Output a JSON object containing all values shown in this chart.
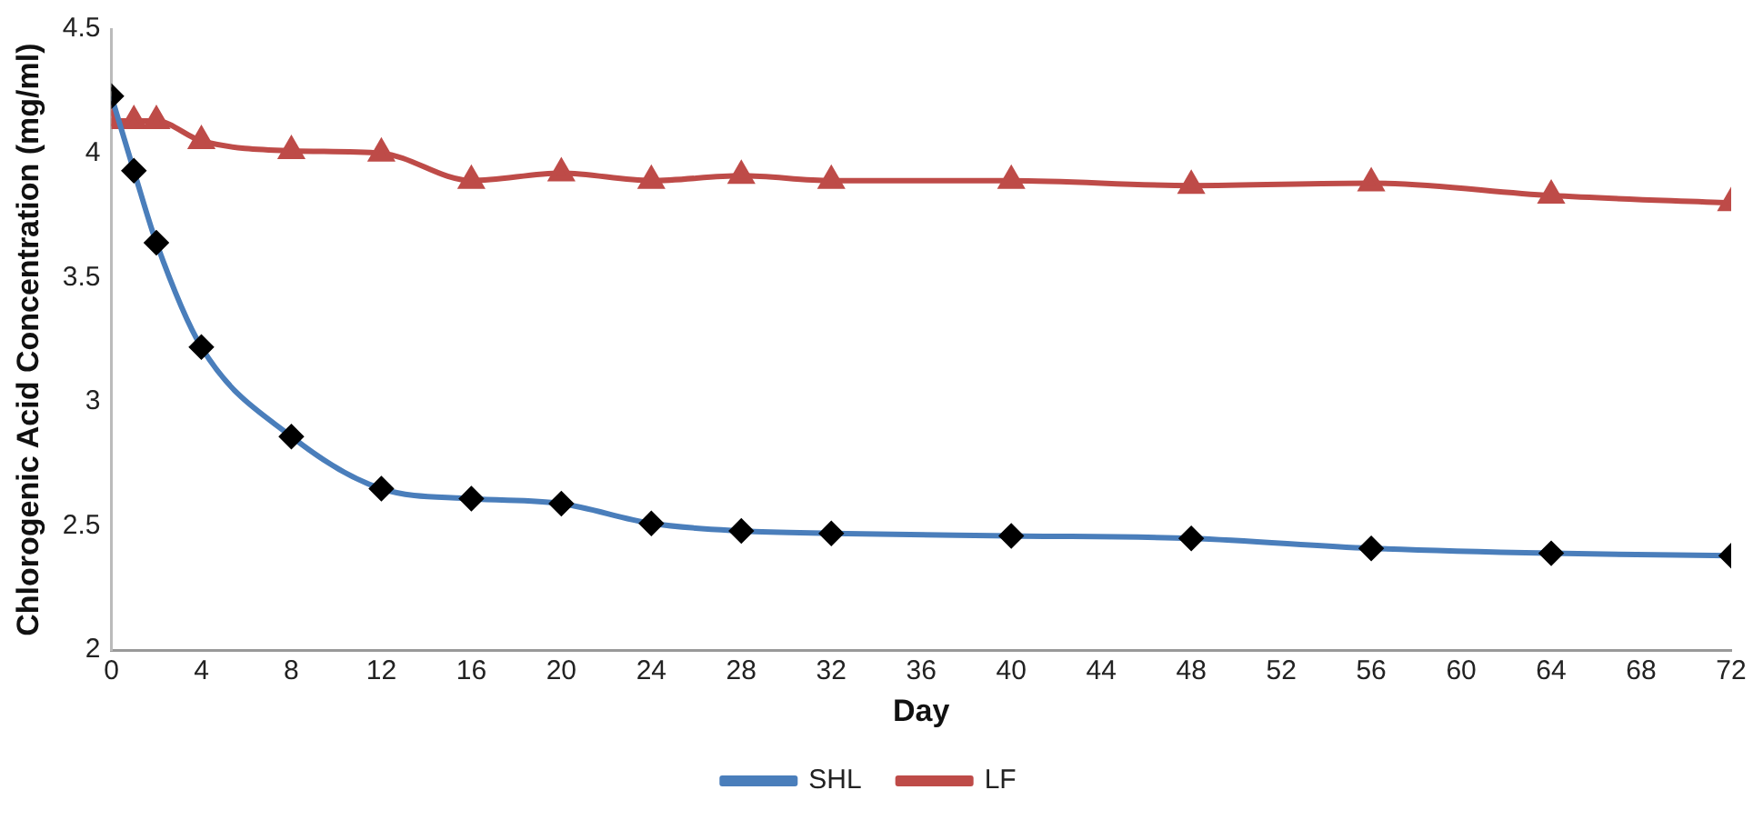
{
  "chart_data": {
    "type": "line",
    "xlabel": "Day",
    "ylabel": "Chlorogenic Acid Concentration (mg/ml)",
    "x": [
      0,
      1,
      2,
      4,
      8,
      12,
      16,
      20,
      24,
      28,
      32,
      40,
      48,
      56,
      64,
      72
    ],
    "series": [
      {
        "name": "SHL",
        "color": "#4a7ebb",
        "marker": "diamond",
        "values": [
          4.23,
          3.93,
          3.64,
          3.22,
          2.86,
          2.65,
          2.61,
          2.59,
          2.51,
          2.48,
          2.47,
          2.46,
          2.45,
          2.41,
          2.39,
          2.38
        ]
      },
      {
        "name": "LF",
        "color": "#be4b48",
        "marker": "triangle",
        "values": [
          4.13,
          4.13,
          4.13,
          4.05,
          4.01,
          4.0,
          3.89,
          3.92,
          3.89,
          3.91,
          3.89,
          3.89,
          3.87,
          3.88,
          3.83,
          3.8
        ]
      }
    ],
    "xlim": [
      0,
      72
    ],
    "xticks": [
      0,
      4,
      8,
      12,
      16,
      20,
      24,
      28,
      32,
      36,
      40,
      44,
      48,
      52,
      56,
      60,
      64,
      68,
      72
    ],
    "ylim": [
      2,
      4.5
    ],
    "yticks": [
      2,
      2.5,
      3,
      3.5,
      4,
      4.5
    ],
    "grid": false,
    "legend": "bottom",
    "line_style": "solid"
  }
}
